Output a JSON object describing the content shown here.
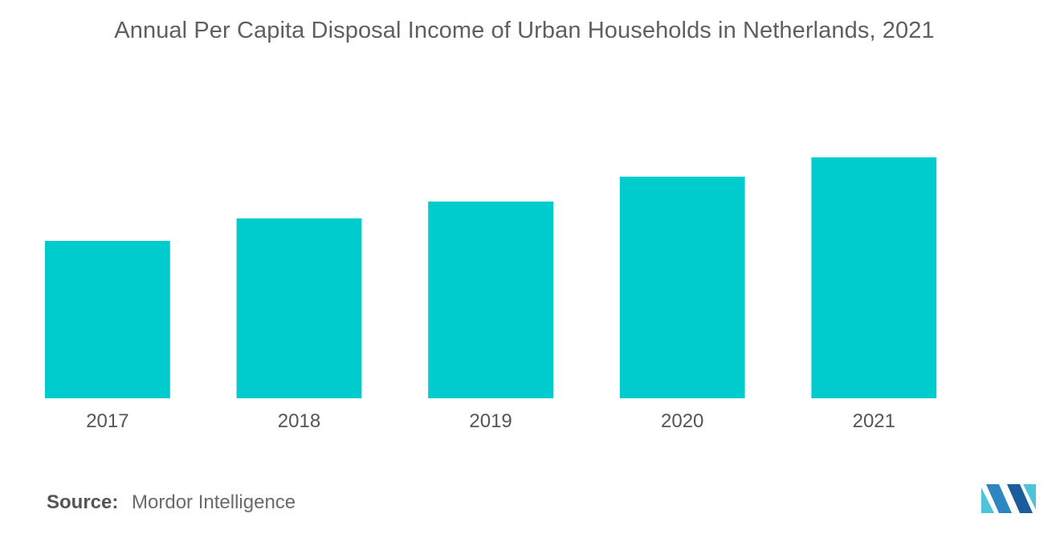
{
  "chart_data": {
    "type": "bar",
    "title": "Annual Per Capita Disposal Income of Urban Households in Netherlands, 2021",
    "xlabel": "",
    "ylabel": "",
    "categories": [
      "2017",
      "2018",
      "2019",
      "2020",
      "2021"
    ],
    "values": [
      196,
      224,
      245,
      276,
      300
    ],
    "ylim": [
      0,
      320
    ],
    "grid": false,
    "legend": "none",
    "bar_color": "#00CCCE",
    "value_axis_labels_shown": false
  },
  "source": {
    "label": "Source:",
    "value": "Mordor Intelligence"
  },
  "logo": {
    "icon": "mordor-intelligence-logo",
    "colors": [
      "#2E86C1",
      "#4FC3D9",
      "#1A5C9E"
    ]
  }
}
